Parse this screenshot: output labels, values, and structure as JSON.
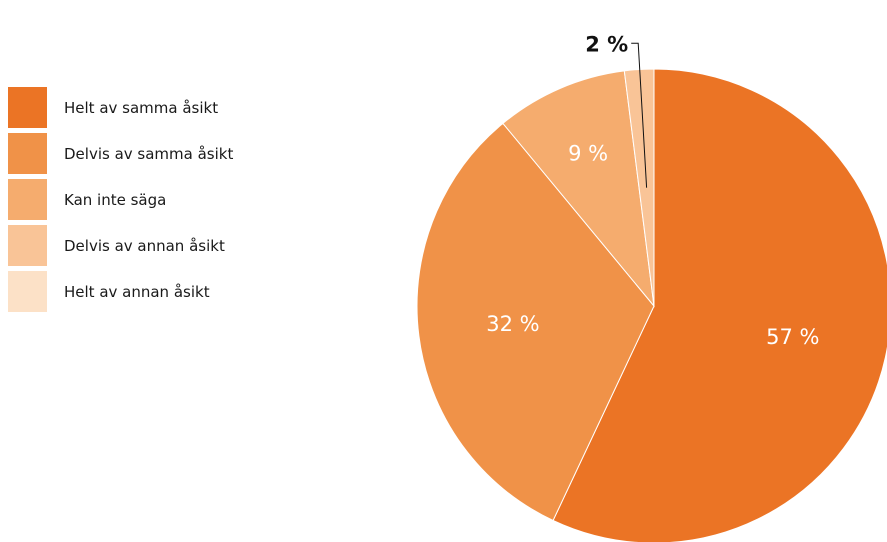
{
  "chart_data": {
    "type": "pie",
    "title": "",
    "legend_position": "left",
    "slices": [
      {
        "label": "Helt av samma åsikt",
        "value": 57,
        "display": "57 %",
        "color": "#EB7425"
      },
      {
        "label": "Delvis av samma åsikt",
        "value": 32,
        "display": "32 %",
        "color": "#F09248"
      },
      {
        "label": "Kan inte säga",
        "value": 9,
        "display": "9 %",
        "color": "#F5AC6E"
      },
      {
        "label": "Delvis av annan åsikt",
        "value": 2,
        "display": "2 %",
        "color": "#F9C497"
      },
      {
        "label": "Helt av annan åsikt",
        "value": 0,
        "display": "",
        "color": "#FCE1C7"
      }
    ]
  }
}
